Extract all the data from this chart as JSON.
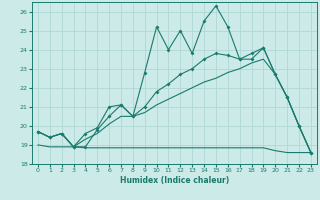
{
  "title": "",
  "xlabel": "Humidex (Indice chaleur)",
  "bg_color": "#cceae7",
  "grid_color": "#b0d8d4",
  "line_color": "#1a7a6e",
  "xlim": [
    -0.5,
    23.5
  ],
  "ylim": [
    18.0,
    26.5
  ],
  "yticks": [
    18,
    19,
    20,
    21,
    22,
    23,
    24,
    25,
    26
  ],
  "xticks": [
    0,
    1,
    2,
    3,
    4,
    5,
    6,
    7,
    8,
    9,
    10,
    11,
    12,
    13,
    14,
    15,
    16,
    17,
    18,
    19,
    20,
    21,
    22,
    23
  ],
  "series1_x": [
    0,
    1,
    2,
    3,
    4,
    5,
    6,
    7,
    8,
    9,
    10,
    11,
    12,
    13,
    14,
    15,
    16,
    17,
    18,
    19,
    20,
    21,
    22,
    23
  ],
  "series1_y": [
    19.7,
    19.4,
    19.6,
    18.9,
    18.9,
    19.8,
    20.5,
    21.1,
    20.5,
    22.8,
    25.2,
    24.0,
    25.0,
    23.8,
    25.5,
    26.3,
    25.2,
    23.5,
    23.5,
    24.1,
    22.7,
    21.5,
    20.0,
    18.6
  ],
  "series2_x": [
    0,
    1,
    2,
    3,
    4,
    5,
    6,
    7,
    8,
    9,
    10,
    11,
    12,
    13,
    14,
    15,
    16,
    17,
    18,
    19,
    20,
    21,
    22,
    23
  ],
  "series2_y": [
    19.7,
    19.4,
    19.6,
    18.9,
    19.6,
    19.9,
    21.0,
    21.1,
    20.5,
    21.0,
    21.8,
    22.2,
    22.7,
    23.0,
    23.5,
    23.8,
    23.7,
    23.5,
    23.8,
    24.1,
    22.7,
    21.5,
    20.0,
    18.6
  ],
  "series3_x": [
    0,
    1,
    2,
    3,
    4,
    5,
    6,
    7,
    8,
    9,
    10,
    11,
    12,
    13,
    14,
    15,
    16,
    17,
    18,
    19,
    20,
    21,
    22,
    23
  ],
  "series3_y": [
    19.7,
    19.4,
    19.6,
    18.9,
    19.3,
    19.6,
    20.1,
    20.5,
    20.5,
    20.7,
    21.1,
    21.4,
    21.7,
    22.0,
    22.3,
    22.5,
    22.8,
    23.0,
    23.3,
    23.5,
    22.7,
    21.5,
    20.0,
    18.6
  ],
  "series4_x": [
    0,
    1,
    2,
    3,
    4,
    5,
    6,
    7,
    8,
    9,
    10,
    11,
    12,
    13,
    14,
    15,
    16,
    17,
    18,
    19,
    20,
    21,
    22,
    23
  ],
  "series4_y": [
    19.0,
    18.9,
    18.9,
    18.9,
    18.85,
    18.85,
    18.85,
    18.85,
    18.85,
    18.85,
    18.85,
    18.85,
    18.85,
    18.85,
    18.85,
    18.85,
    18.85,
    18.85,
    18.85,
    18.85,
    18.7,
    18.6,
    18.6,
    18.6
  ]
}
